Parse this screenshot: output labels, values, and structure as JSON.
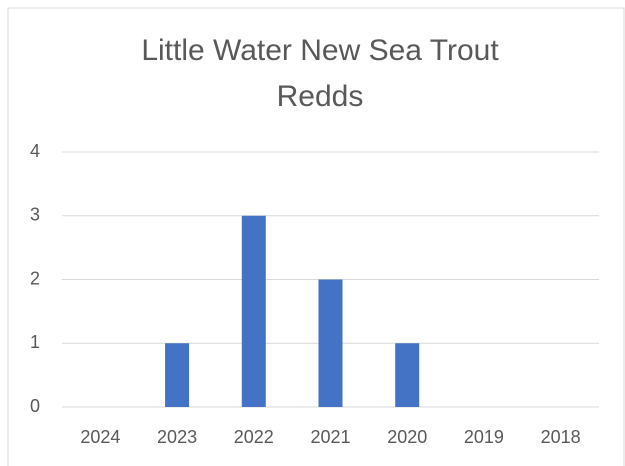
{
  "chart_data": {
    "type": "bar",
    "title": "Little Water New Sea Trout Redds",
    "categories": [
      "2024",
      "2023",
      "2022",
      "2021",
      "2020",
      "2019",
      "2018"
    ],
    "values": [
      0,
      1,
      3,
      2,
      1,
      0,
      0
    ],
    "color": "#4472c4",
    "ylim": [
      0,
      4
    ],
    "yticks": [
      0,
      1,
      2,
      3,
      4
    ],
    "grid": true
  }
}
